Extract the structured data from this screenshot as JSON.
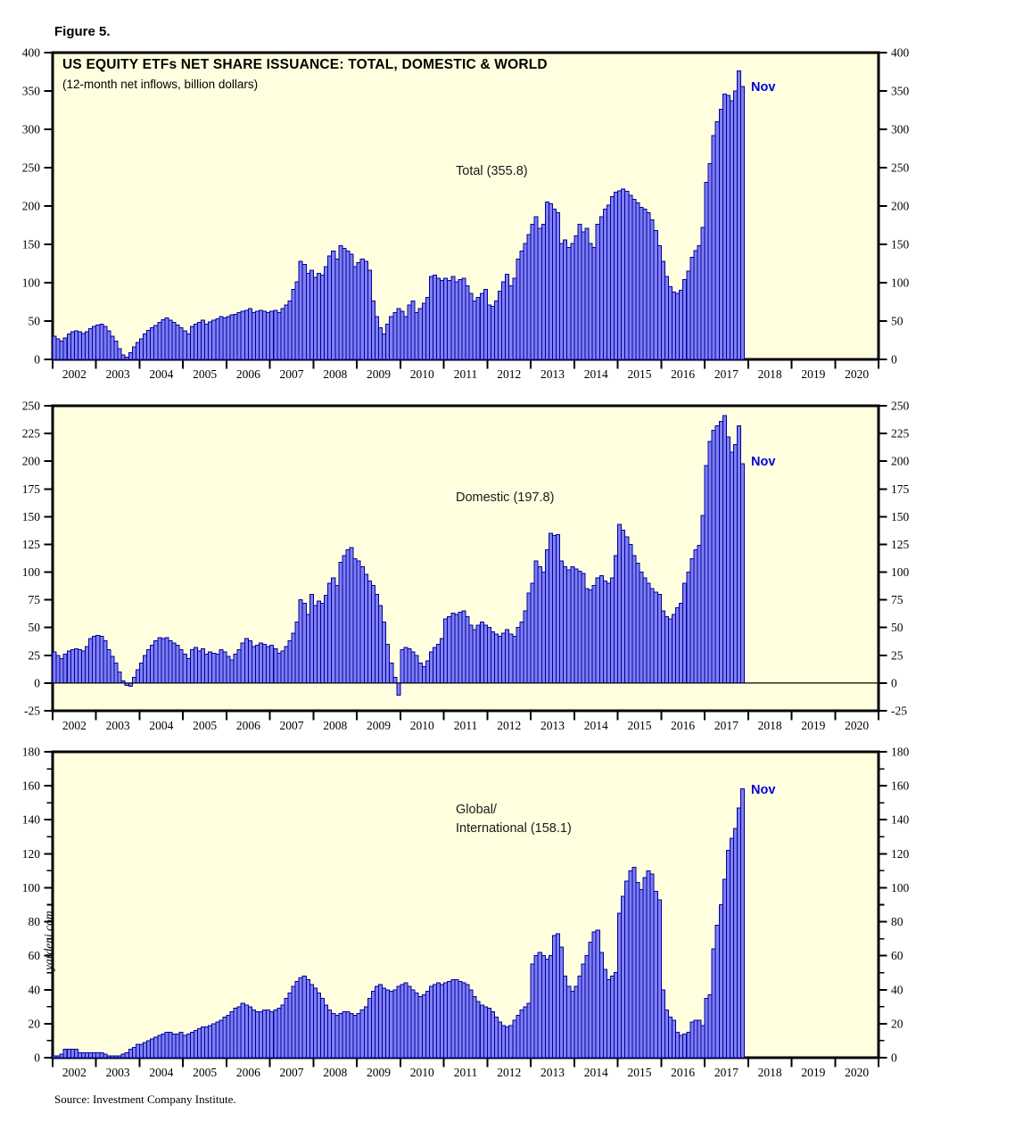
{
  "figure_label": "Figure 5.",
  "title": "US EQUITY ETFs NET SHARE ISSUANCE: TOTAL, DOMESTIC & WORLD",
  "subtitle": "(12-month net inflows, billion dollars)",
  "watermark": "yardeni.com",
  "source": "Source: Investment Company Institute.",
  "colors": {
    "plot_background": "#ffffe0",
    "bar_fill": "#8080f2",
    "bar_stroke": "#0000a0",
    "frame": "#000000",
    "annotation_blue": "#0000dd"
  },
  "chart_data": [
    {
      "type": "bar",
      "name": "total",
      "series_label": "Total (355.8)",
      "annotation": "Nov",
      "last_value": 355.8,
      "ylim": [
        0,
        400
      ],
      "yticks": [
        0,
        50,
        100,
        150,
        200,
        250,
        300,
        350,
        400
      ],
      "yticks_minor": [],
      "grid": false,
      "years": [
        "2002",
        "2003",
        "2004",
        "2005",
        "2006",
        "2007",
        "2008",
        "2009",
        "2010",
        "2011",
        "2012",
        "2013",
        "2014",
        "2015",
        "2016",
        "2017",
        "2018",
        "2019",
        "2020"
      ],
      "x_months_start": "2002-01",
      "x_months_end": "2017-11",
      "values": [
        30,
        27,
        24,
        28,
        33,
        36,
        37,
        36,
        34,
        36,
        40,
        43,
        45,
        46,
        43,
        37,
        30,
        24,
        14,
        6,
        3,
        9,
        16,
        22,
        27,
        33,
        38,
        41,
        44,
        48,
        52,
        54,
        51,
        48,
        45,
        41,
        37,
        33,
        43,
        46,
        48,
        51,
        46,
        49,
        51,
        53,
        56,
        54,
        56,
        58,
        59,
        61,
        63,
        64,
        66,
        61,
        63,
        64,
        63,
        61,
        63,
        64,
        61,
        66,
        71,
        76,
        91,
        101,
        128,
        124,
        112,
        116,
        107,
        112,
        110,
        121,
        135,
        141,
        131,
        148,
        145,
        141,
        137,
        121,
        126,
        131,
        128,
        116,
        76,
        56,
        41,
        33,
        46,
        56,
        61,
        66,
        63,
        56,
        71,
        76,
        61,
        66,
        73,
        81,
        108,
        110,
        106,
        103,
        106,
        103,
        108,
        101,
        104,
        106,
        96,
        86,
        76,
        81,
        86,
        91,
        71,
        69,
        76,
        89,
        101,
        111,
        96,
        106,
        131,
        141,
        151,
        163,
        176,
        186,
        171,
        176,
        205,
        203,
        196,
        191,
        151,
        156,
        146,
        151,
        161,
        176,
        166,
        171,
        151,
        146,
        176,
        186,
        196,
        201,
        212,
        218,
        220,
        222,
        219,
        214,
        209,
        204,
        198,
        196,
        191,
        182,
        168,
        148,
        128,
        108,
        95,
        88,
        86,
        90,
        104,
        115,
        133,
        142,
        148,
        172,
        231,
        255,
        292,
        310,
        326,
        346,
        344,
        337,
        350,
        376,
        355.8
      ]
    },
    {
      "type": "bar",
      "name": "domestic",
      "series_label": "Domestic (197.8)",
      "annotation": "Nov",
      "last_value": 197.8,
      "ylim": [
        -25,
        250
      ],
      "yticks": [
        -25,
        0,
        25,
        50,
        75,
        100,
        125,
        150,
        175,
        200,
        225,
        250
      ],
      "yticks_minor": [],
      "grid": false,
      "zero_line": true,
      "years": [
        "2002",
        "2003",
        "2004",
        "2005",
        "2006",
        "2007",
        "2008",
        "2009",
        "2010",
        "2011",
        "2012",
        "2013",
        "2014",
        "2015",
        "2016",
        "2017",
        "2018",
        "2019",
        "2020"
      ],
      "x_months_start": "2002-01",
      "x_months_end": "2017-11",
      "values": [
        28,
        25,
        22,
        26,
        29,
        30,
        31,
        30,
        29,
        33,
        40,
        42,
        43,
        42,
        38,
        30,
        24,
        18,
        10,
        2,
        -2,
        -3,
        5,
        12,
        18,
        25,
        30,
        34,
        38,
        41,
        40,
        41,
        38,
        36,
        34,
        30,
        26,
        22,
        30,
        32,
        29,
        31,
        26,
        28,
        27,
        26,
        30,
        28,
        24,
        21,
        26,
        30,
        36,
        40,
        38,
        33,
        34,
        36,
        35,
        33,
        34,
        31,
        27,
        29,
        33,
        38,
        45,
        55,
        75,
        72,
        62,
        80,
        70,
        74,
        72,
        79,
        90,
        95,
        88,
        109,
        115,
        120,
        122,
        112,
        110,
        105,
        98,
        92,
        88,
        80,
        70,
        55,
        35,
        18,
        5,
        -11,
        30,
        32,
        31,
        28,
        25,
        18,
        15,
        20,
        28,
        32,
        35,
        40,
        58,
        60,
        63,
        62,
        64,
        65,
        60,
        52,
        48,
        52,
        55,
        52,
        50,
        46,
        44,
        42,
        45,
        48,
        44,
        42,
        50,
        55,
        65,
        81,
        90,
        110,
        105,
        100,
        120,
        135,
        133,
        134,
        110,
        105,
        102,
        105,
        103,
        101,
        99,
        85,
        84,
        88,
        95,
        97,
        92,
        90,
        95,
        115,
        143,
        138,
        132,
        125,
        115,
        108,
        100,
        95,
        90,
        85,
        82,
        80,
        65,
        60,
        58,
        62,
        68,
        72,
        90,
        100,
        112,
        120,
        124,
        151,
        196,
        218,
        228,
        232,
        236,
        241,
        222,
        208,
        215,
        232,
        197.8
      ]
    },
    {
      "type": "bar",
      "name": "global",
      "series_label_lines": [
        "Global/",
        "International (158.1)"
      ],
      "annotation": "Nov",
      "last_value": 158.1,
      "ylim": [
        0,
        180
      ],
      "yticks": [
        0,
        20,
        40,
        60,
        80,
        100,
        120,
        140,
        160,
        180
      ],
      "yticks_minor": [
        10,
        30,
        50,
        70,
        90,
        110,
        130,
        150,
        170
      ],
      "grid": false,
      "years": [
        "2002",
        "2003",
        "2004",
        "2005",
        "2006",
        "2007",
        "2008",
        "2009",
        "2010",
        "2011",
        "2012",
        "2013",
        "2014",
        "2015",
        "2016",
        "2017",
        "2018",
        "2019",
        "2020"
      ],
      "x_months_start": "2002-01",
      "x_months_end": "2017-11",
      "values": [
        1,
        1,
        2,
        5,
        5,
        5,
        5,
        3,
        3,
        3,
        3,
        3,
        3,
        3,
        2,
        1,
        1,
        1,
        1,
        2,
        3,
        5,
        6,
        8,
        8,
        9,
        10,
        11,
        12,
        13,
        14,
        15,
        15,
        14,
        14,
        15,
        13,
        14,
        15,
        16,
        17,
        18,
        18,
        19,
        20,
        21,
        22,
        24,
        25,
        27,
        29,
        30,
        32,
        31,
        30,
        28,
        27,
        27,
        28,
        28,
        27,
        28,
        29,
        31,
        35,
        38,
        42,
        45,
        47,
        48,
        46,
        43,
        41,
        38,
        35,
        31,
        28,
        26,
        25,
        26,
        27,
        27,
        26,
        25,
        26,
        28,
        30,
        35,
        39,
        42,
        43,
        41,
        40,
        39,
        40,
        42,
        43,
        44,
        42,
        40,
        38,
        36,
        37,
        39,
        42,
        43,
        44,
        43,
        44,
        45,
        46,
        46,
        45,
        44,
        43,
        40,
        36,
        33,
        31,
        30,
        29,
        27,
        24,
        21,
        19,
        18,
        19,
        22,
        25,
        28,
        30,
        32,
        55,
        60,
        62,
        60,
        58,
        60,
        72,
        73,
        65,
        48,
        42,
        39,
        42,
        48,
        55,
        60,
        68,
        74,
        75,
        62,
        52,
        46,
        48,
        50,
        85,
        95,
        104,
        110,
        112,
        103,
        99,
        106,
        110,
        108,
        98,
        93,
        40,
        28,
        24,
        22,
        15,
        13,
        14,
        15,
        21,
        22,
        22,
        19,
        35,
        37,
        64,
        78,
        90,
        105,
        122,
        129,
        135,
        147,
        158.1
      ]
    }
  ]
}
